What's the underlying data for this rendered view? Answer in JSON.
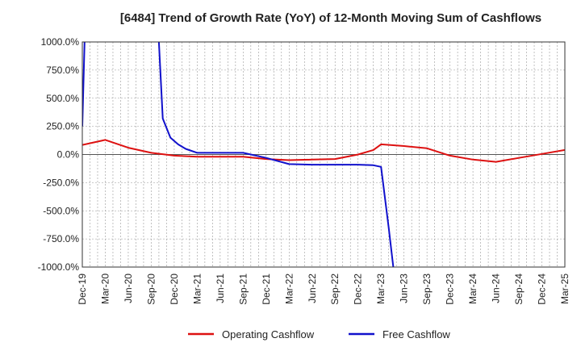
{
  "chart_data": {
    "type": "line",
    "title": "[6484]  Trend of Growth Rate (YoY) of 12-Month Moving Sum of Cashflows",
    "xlabel": "",
    "ylabel": "",
    "x_tick_labels": [
      "Dec-19",
      "Mar-20",
      "Jun-20",
      "Sep-20",
      "Dec-20",
      "Mar-21",
      "Jun-21",
      "Sep-21",
      "Dec-21",
      "Mar-22",
      "Jun-22",
      "Sep-22",
      "Dec-22",
      "Mar-23",
      "Jun-23",
      "Sep-23",
      "Dec-23",
      "Mar-24",
      "Jun-24",
      "Sep-24",
      "Dec-24",
      "Mar-25"
    ],
    "x_range_months": [
      0,
      63
    ],
    "ylim": [
      -1000,
      1000
    ],
    "y_ticks": [
      -1000,
      -750,
      -500,
      -250,
      0,
      250,
      500,
      750,
      1000
    ],
    "y_tick_labels": [
      "-1000.0%",
      "-750.0%",
      "-500.0%",
      "-250.0%",
      "0.0%",
      "250.0%",
      "500.0%",
      "750.0%",
      "1000.0%"
    ],
    "grid": true,
    "legend_position": "bottom",
    "series": [
      {
        "name": "Operating Cashflow",
        "color": "#dd1111",
        "points": [
          [
            0,
            85
          ],
          [
            3,
            130
          ],
          [
            6,
            60
          ],
          [
            9,
            15
          ],
          [
            12,
            -10
          ],
          [
            15,
            -20
          ],
          [
            18,
            -20
          ],
          [
            21,
            -20
          ],
          [
            24,
            -40
          ],
          [
            27,
            -50
          ],
          [
            30,
            -45
          ],
          [
            33,
            -40
          ],
          [
            36,
            0
          ],
          [
            38,
            40
          ],
          [
            39,
            90
          ],
          [
            42,
            75
          ],
          [
            45,
            55
          ],
          [
            48,
            -10
          ],
          [
            51,
            -45
          ],
          [
            54,
            -65
          ],
          [
            57,
            -30
          ],
          [
            60,
            5
          ],
          [
            63,
            40
          ]
        ]
      },
      {
        "name": "Free Cashflow",
        "color": "#1111cc",
        "points": [
          [
            0,
            250
          ],
          [
            0.3,
            1000
          ],
          [
            null,
            null
          ],
          [
            10,
            1000
          ],
          [
            10.5,
            320
          ],
          [
            11.5,
            150
          ],
          [
            12.5,
            90
          ],
          [
            13.5,
            50
          ],
          [
            15,
            15
          ],
          [
            18,
            15
          ],
          [
            21,
            15
          ],
          [
            24,
            -30
          ],
          [
            27,
            -85
          ],
          [
            30,
            -90
          ],
          [
            33,
            -90
          ],
          [
            36,
            -90
          ],
          [
            38,
            -95
          ],
          [
            39,
            -110
          ],
          [
            40,
            -650
          ],
          [
            40.6,
            -1000
          ]
        ]
      }
    ]
  }
}
